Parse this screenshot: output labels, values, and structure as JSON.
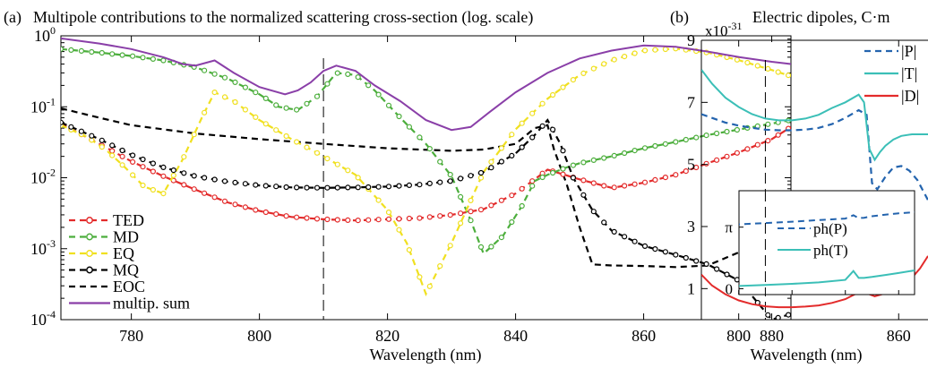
{
  "chart_data": [
    {
      "panel_label": "(a)",
      "title": "Multipole contributions to the normalized scattering cross-section (log. scale)",
      "type": "line",
      "xlabel": "Wavelength (nm)",
      "ylabel": "",
      "xlim": [
        769,
        883
      ],
      "ylim": [
        0.0001,
        1
      ],
      "yscale": "log",
      "xticks": [
        780,
        800,
        820,
        840,
        860,
        880
      ],
      "yticks": [
        {
          "value": 1,
          "base": "10",
          "exp": "0"
        },
        {
          "value": 0.1,
          "base": "10",
          "exp": "-1"
        },
        {
          "value": 0.01,
          "base": "10",
          "exp": "-2"
        },
        {
          "value": 0.001,
          "base": "10",
          "exp": "-3"
        },
        {
          "value": 0.0001,
          "base": "10",
          "exp": "-4"
        }
      ],
      "vline": 810,
      "legend_position": "bottom-left",
      "series": [
        {
          "name": "TED",
          "color": "#e32b2b",
          "style": "dashed-circle",
          "x": [
            769,
            775,
            780,
            785,
            790,
            795,
            800,
            805,
            810,
            815,
            820,
            825,
            830,
            835,
            840,
            845,
            850,
            855,
            860,
            865,
            870,
            875,
            880,
            883
          ],
          "y": [
            0.058,
            0.03,
            0.017,
            0.0105,
            0.0068,
            0.0045,
            0.0034,
            0.0028,
            0.0026,
            0.0025,
            0.0026,
            0.0027,
            0.003,
            0.0036,
            0.006,
            0.013,
            0.0095,
            0.0072,
            0.0085,
            0.011,
            0.016,
            0.023,
            0.035,
            0.052
          ]
        },
        {
          "name": "MD",
          "color": "#4cae3c",
          "style": "dashed-circle",
          "x": [
            769,
            775,
            780,
            785,
            790,
            795,
            800,
            803,
            806,
            809,
            812,
            815,
            818,
            822,
            826,
            830,
            833,
            835,
            838,
            841,
            843,
            845,
            848,
            850,
            855,
            860,
            865,
            870,
            875,
            880,
            883
          ],
          "y": [
            0.65,
            0.58,
            0.52,
            0.45,
            0.36,
            0.25,
            0.15,
            0.1,
            0.09,
            0.14,
            0.3,
            0.28,
            0.17,
            0.07,
            0.03,
            0.0105,
            0.0025,
            0.00085,
            0.0015,
            0.004,
            0.009,
            0.011,
            0.014,
            0.016,
            0.02,
            0.026,
            0.032,
            0.04,
            0.048,
            0.058,
            0.065
          ]
        },
        {
          "name": "EQ",
          "color": "#f0e020",
          "style": "dashed-circle",
          "x": [
            769,
            773,
            776,
            779,
            782,
            785,
            788,
            791,
            793,
            796,
            800,
            805,
            810,
            815,
            820,
            823,
            826,
            830,
            835,
            840,
            845,
            850,
            855,
            860,
            865,
            870,
            875,
            880,
            883
          ],
          "y": [
            0.055,
            0.038,
            0.025,
            0.014,
            0.0075,
            0.006,
            0.018,
            0.07,
            0.16,
            0.12,
            0.065,
            0.035,
            0.02,
            0.011,
            0.0035,
            0.0012,
            0.00023,
            0.0012,
            0.012,
            0.048,
            0.13,
            0.28,
            0.45,
            0.62,
            0.66,
            0.58,
            0.45,
            0.33,
            0.27
          ]
        },
        {
          "name": "MQ",
          "color": "#000000",
          "style": "dashed-circle",
          "x": [
            769,
            775,
            780,
            785,
            790,
            795,
            800,
            805,
            810,
            815,
            820,
            825,
            830,
            835,
            840,
            843,
            845,
            847,
            849,
            852,
            855,
            860,
            865,
            870,
            875,
            880,
            883
          ],
          "y": [
            0.06,
            0.035,
            0.021,
            0.014,
            0.0105,
            0.0088,
            0.0078,
            0.0073,
            0.0072,
            0.0073,
            0.0075,
            0.008,
            0.009,
            0.012,
            0.022,
            0.04,
            0.065,
            0.03,
            0.01,
            0.0035,
            0.0018,
            0.0011,
            0.00082,
            0.0006,
            0.00035,
            0.0001,
            0.00012
          ]
        },
        {
          "name": "EOC",
          "color": "#000000",
          "style": "dashed",
          "x": [
            769,
            775,
            780,
            790,
            800,
            810,
            820,
            830,
            835,
            840,
            843,
            845,
            846,
            848,
            850,
            852,
            855,
            860,
            865,
            870,
            875,
            880,
            883
          ],
          "y": [
            0.095,
            0.07,
            0.055,
            0.042,
            0.035,
            0.03,
            0.026,
            0.024,
            0.025,
            0.03,
            0.05,
            0.055,
            0.025,
            0.008,
            0.002,
            0.0006,
            0.00058,
            0.00057,
            0.00055,
            0.00058,
            0.0009,
            0.002,
            0.0034
          ]
        },
        {
          "name": "multip. sum",
          "color": "#8a3fa8",
          "style": "solid",
          "x": [
            769,
            775,
            780,
            785,
            788,
            790,
            793,
            796,
            800,
            804,
            806,
            808,
            810,
            812,
            815,
            818,
            822,
            826,
            830,
            833,
            836,
            840,
            845,
            850,
            855,
            860,
            865,
            870,
            875,
            880,
            883
          ],
          "y": [
            0.92,
            0.78,
            0.65,
            0.5,
            0.4,
            0.38,
            0.45,
            0.3,
            0.19,
            0.15,
            0.17,
            0.22,
            0.32,
            0.38,
            0.32,
            0.2,
            0.12,
            0.065,
            0.047,
            0.052,
            0.085,
            0.16,
            0.3,
            0.48,
            0.62,
            0.73,
            0.7,
            0.6,
            0.5,
            0.43,
            0.4
          ]
        }
      ]
    },
    {
      "panel_label": "(b)",
      "title": "Electric dipoles, C·m",
      "type": "line",
      "xlabel": "Wavelength (nm)",
      "ylabel": "",
      "xlim": [
        786,
        871
      ],
      "ylim": [
        0,
        9
      ],
      "y_multiplier": {
        "base": "x10",
        "exp": "-31"
      },
      "xticks": [
        800,
        860
      ],
      "yticks": [
        1,
        3,
        5,
        7,
        9
      ],
      "vline": 810,
      "legend_position": "top-right",
      "series": [
        {
          "name": "|P|",
          "color": "#2464ae",
          "style": "dashed",
          "x": [
            786,
            790,
            795,
            800,
            805,
            810,
            815,
            820,
            825,
            830,
            835,
            840,
            845,
            848,
            850,
            852,
            855,
            858,
            861,
            864,
            867,
            871
          ],
          "y": [
            6.62,
            6.5,
            6.35,
            6.25,
            6.18,
            6.12,
            6.1,
            6.1,
            6.12,
            6.18,
            6.3,
            6.5,
            6.75,
            6.6,
            4.4,
            4.2,
            4.6,
            4.9,
            4.95,
            4.8,
            4.5,
            3.85
          ]
        },
        {
          "name": "|T|",
          "color": "#3bbfb7",
          "style": "solid",
          "x": [
            786,
            790,
            795,
            800,
            805,
            810,
            815,
            820,
            825,
            830,
            835,
            840,
            845,
            847,
            849,
            851,
            853,
            855,
            858,
            861,
            865,
            871
          ],
          "y": [
            8.05,
            7.6,
            7.15,
            6.85,
            6.62,
            6.48,
            6.42,
            6.42,
            6.48,
            6.6,
            6.82,
            7.0,
            7.25,
            7.0,
            5.5,
            5.15,
            5.4,
            5.6,
            5.8,
            5.92,
            5.97,
            5.97
          ]
        },
        {
          "name": "|D|",
          "color": "#e32b2b",
          "style": "solid",
          "x": [
            786,
            790,
            795,
            800,
            805,
            810,
            815,
            820,
            825,
            830,
            835,
            840,
            845,
            847,
            849,
            851,
            855,
            860,
            865,
            868,
            871
          ],
          "y": [
            1.45,
            1.1,
            0.82,
            0.62,
            0.5,
            0.43,
            0.4,
            0.4,
            0.42,
            0.46,
            0.54,
            0.66,
            0.88,
            0.95,
            0.82,
            0.75,
            0.85,
            1.05,
            1.35,
            1.65,
            2.05
          ]
        }
      ],
      "inset": {
        "yticks": [
          {
            "value": 0,
            "label": "0"
          },
          {
            "value": 3.14159,
            "label": "π"
          }
        ],
        "ylim": [
          -0.3,
          5.0
        ],
        "series": [
          {
            "name": "ph(P)",
            "color": "#2464ae",
            "style": "dashed",
            "x": [
              786,
              790,
              800,
              810,
              820,
              830,
              840,
              843,
              845,
              847,
              850,
              855,
              860,
              871
            ],
            "y": [
              3.2,
              3.22,
              3.28,
              3.35,
              3.42,
              3.5,
              3.58,
              3.75,
              3.6,
              3.62,
              3.7,
              3.78,
              3.85,
              3.95
            ]
          },
          {
            "name": "ph(T)",
            "color": "#3bbfb7",
            "style": "solid",
            "x": [
              786,
              790,
              800,
              810,
              820,
              830,
              840,
              843,
              845,
              847,
              850,
              855,
              860,
              871
            ],
            "y": [
              0.05,
              0.09,
              0.14,
              0.19,
              0.25,
              0.32,
              0.45,
              0.9,
              0.55,
              0.55,
              0.6,
              0.7,
              0.8,
              1.05
            ]
          }
        ]
      }
    }
  ]
}
